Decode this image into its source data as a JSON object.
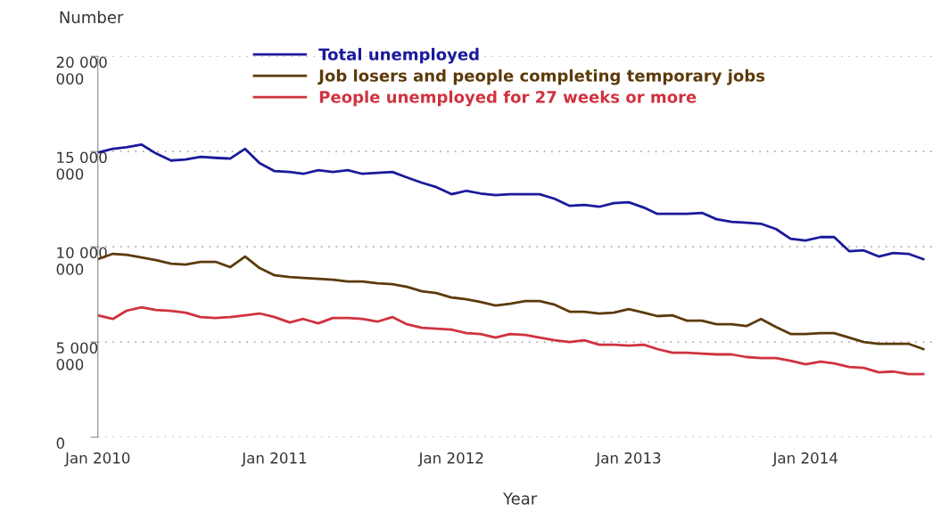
{
  "chart_data": {
    "type": "line",
    "xlabel": "Year",
    "ylabel": "Number",
    "x": [
      "2010-01",
      "2010-02",
      "2010-03",
      "2010-04",
      "2010-05",
      "2010-06",
      "2010-07",
      "2010-08",
      "2010-09",
      "2010-10",
      "2010-11",
      "2010-12",
      "2011-01",
      "2011-02",
      "2011-03",
      "2011-04",
      "2011-05",
      "2011-06",
      "2011-07",
      "2011-08",
      "2011-09",
      "2011-10",
      "2011-11",
      "2011-12",
      "2012-01",
      "2012-02",
      "2012-03",
      "2012-04",
      "2012-05",
      "2012-06",
      "2012-07",
      "2012-08",
      "2012-09",
      "2012-10",
      "2012-11",
      "2012-12",
      "2013-01",
      "2013-02",
      "2013-03",
      "2013-04",
      "2013-05",
      "2013-06",
      "2013-07",
      "2013-08",
      "2013-09",
      "2013-10",
      "2013-11",
      "2013-12",
      "2014-01",
      "2014-02",
      "2014-03",
      "2014-04",
      "2014-05",
      "2014-06",
      "2014-07",
      "2014-08",
      "2014-09"
    ],
    "series": [
      {
        "name": "Total unemployed",
        "color": "#1a1a9c",
        "values": [
          14950000,
          15140000,
          15230000,
          15370000,
          14900000,
          14530000,
          14580000,
          14720000,
          14670000,
          14630000,
          15140000,
          14390000,
          13970000,
          13930000,
          13830000,
          14020000,
          13930000,
          14020000,
          13830000,
          13880000,
          13930000,
          13640000,
          13360000,
          13130000,
          12760000,
          12940000,
          12800000,
          12710000,
          12760000,
          12760000,
          12760000,
          12520000,
          12150000,
          12200000,
          12100000,
          12290000,
          12340000,
          12060000,
          11730000,
          11730000,
          11730000,
          11780000,
          11450000,
          11310000,
          11260000,
          11210000,
          10930000,
          10420000,
          10330000,
          10510000,
          10510000,
          9770000,
          9810000,
          9490000,
          9670000,
          9630000,
          9350000
        ]
      },
      {
        "name": "Job losers and people completing temporary jobs",
        "color": "#5c3a0a",
        "values": [
          9350000,
          9630000,
          9580000,
          9440000,
          9300000,
          9110000,
          9070000,
          9210000,
          9210000,
          8930000,
          9490000,
          8880000,
          8500000,
          8410000,
          8360000,
          8320000,
          8270000,
          8180000,
          8180000,
          8080000,
          8040000,
          7900000,
          7660000,
          7570000,
          7340000,
          7240000,
          7100000,
          6920000,
          7010000,
          7150000,
          7150000,
          6960000,
          6590000,
          6590000,
          6500000,
          6540000,
          6730000,
          6540000,
          6360000,
          6400000,
          6120000,
          6120000,
          5930000,
          5930000,
          5840000,
          6210000,
          5790000,
          5420000,
          5420000,
          5470000,
          5470000,
          5230000,
          5000000,
          4910000,
          4910000,
          4910000,
          4630000
        ]
      },
      {
        "name": "People unemployed for 27 weeks or more",
        "color": "#d0323f",
        "values": [
          6400000,
          6210000,
          6640000,
          6820000,
          6680000,
          6640000,
          6540000,
          6310000,
          6260000,
          6310000,
          6400000,
          6500000,
          6310000,
          6030000,
          6210000,
          5980000,
          6260000,
          6260000,
          6210000,
          6070000,
          6310000,
          5930000,
          5750000,
          5700000,
          5650000,
          5470000,
          5420000,
          5230000,
          5420000,
          5370000,
          5230000,
          5090000,
          5000000,
          5090000,
          4860000,
          4860000,
          4810000,
          4860000,
          4630000,
          4440000,
          4440000,
          4390000,
          4350000,
          4350000,
          4210000,
          4160000,
          4160000,
          4020000,
          3830000,
          3970000,
          3880000,
          3690000,
          3640000,
          3410000,
          3450000,
          3320000,
          3320000
        ]
      }
    ],
    "xlim": [
      "2010-01",
      "2014-09-19"
    ],
    "xticks": [
      {
        "value": "2011-01",
        "label": "Jan 2011"
      },
      {
        "value": "2012-01",
        "label": "Jan 2012"
      },
      {
        "value": "2013-01",
        "label": "Jan 2013"
      },
      {
        "value": "2014-01",
        "label": "Jan 2014"
      },
      {
        "value": "2010-01",
        "label": "Jan 2010"
      }
    ],
    "ylim": [
      0,
      20000000
    ],
    "yticks": [
      {
        "value": 0,
        "label": "0"
      },
      {
        "value": 5000000,
        "label": "5 000 000"
      },
      {
        "value": 10000000,
        "label": "10 000 000"
      },
      {
        "value": 15000000,
        "label": "15 000 000"
      },
      {
        "value": 20000000,
        "label": "20 000 000"
      }
    ],
    "grid": "y",
    "legend": "top",
    "marker": "none",
    "line_style": "solid"
  }
}
